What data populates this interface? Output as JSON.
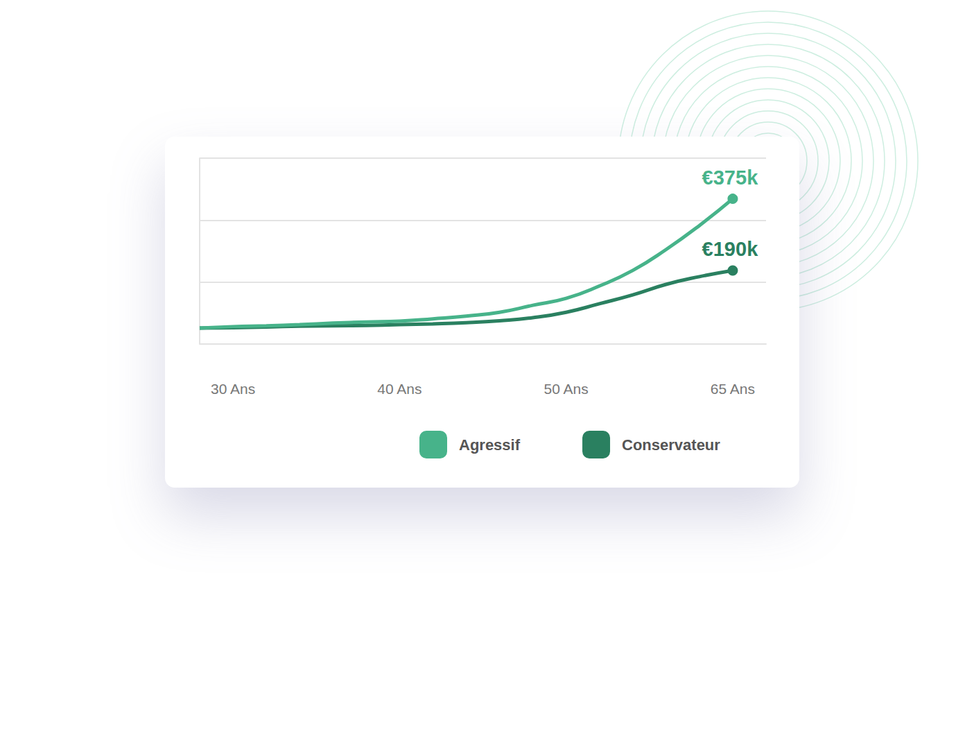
{
  "chart_data": {
    "type": "line",
    "categories": [
      null,
      "30 Ans",
      null,
      null,
      null,
      null,
      "40 Ans",
      null,
      null,
      null,
      null,
      "50 Ans",
      null,
      null,
      null,
      null,
      "65 Ans",
      null
    ],
    "series": [
      {
        "name": "Agressif",
        "color": "#47b38a",
        "values": [
          41,
          45,
          47,
          50,
          54,
          57,
          59,
          65,
          72,
          82,
          100,
          118,
          150,
          190,
          244,
          306,
          375,
          null
        ]
      },
      {
        "name": "Conservateur",
        "color": "#2a8060",
        "values": [
          41,
          42,
          44,
          46,
          47,
          48,
          50,
          52,
          55,
          60,
          68,
          82,
          104,
          127,
          154,
          174,
          190,
          null
        ]
      }
    ],
    "annotations": [
      {
        "text": "€375k",
        "series": "Agressif",
        "x": "65 Ans",
        "y": 375
      },
      {
        "text": "€190k",
        "series": "Conservateur",
        "x": "65 Ans",
        "y": 190
      }
    ],
    "ylim": [
      0,
      480
    ],
    "yticks": [
      0,
      160,
      320,
      480
    ],
    "tick_labels": "x",
    "grid": true,
    "legend": "bottom-right"
  }
}
